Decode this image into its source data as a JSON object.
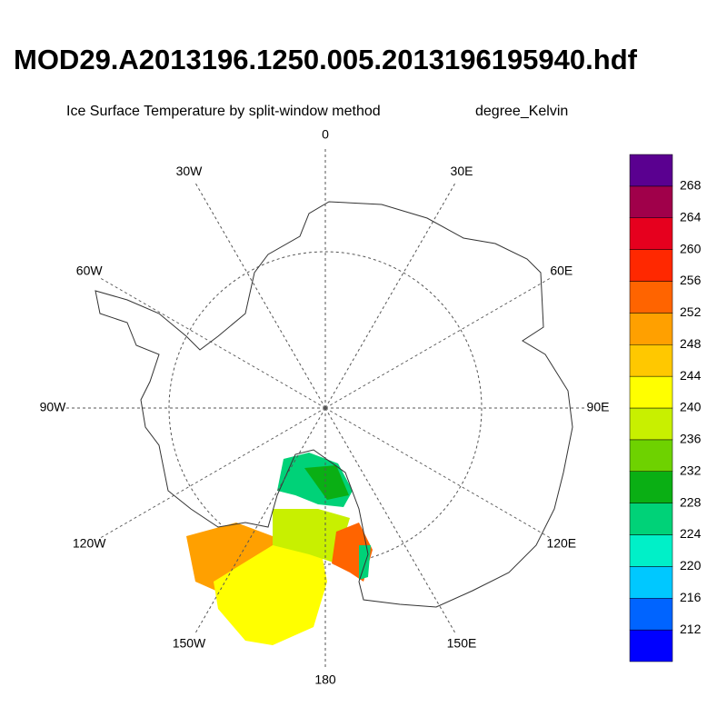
{
  "header": {
    "title": "MOD29.A2013196.1250.005.2013196195940.hdf",
    "subtitle": "Ice Surface Temperature by split-window method",
    "units": "degree_Kelvin"
  },
  "map": {
    "longitude_labels": [
      "0",
      "30E",
      "60E",
      "90E",
      "120E",
      "150E",
      "180",
      "150W",
      "120W",
      "90W",
      "60W",
      "30W"
    ]
  },
  "colorbar": {
    "colors": [
      "#0000ff",
      "#0064ff",
      "#00c8ff",
      "#00f0c8",
      "#00d278",
      "#0aaf14",
      "#6ed200",
      "#c8f000",
      "#ffff00",
      "#ffc800",
      "#ffa000",
      "#ff6400",
      "#ff2800",
      "#e6001e",
      "#a0004a",
      "#5a0090"
    ],
    "labels": [
      212,
      216,
      220,
      224,
      228,
      232,
      236,
      240,
      244,
      248,
      252,
      256,
      260,
      264,
      268
    ]
  }
}
